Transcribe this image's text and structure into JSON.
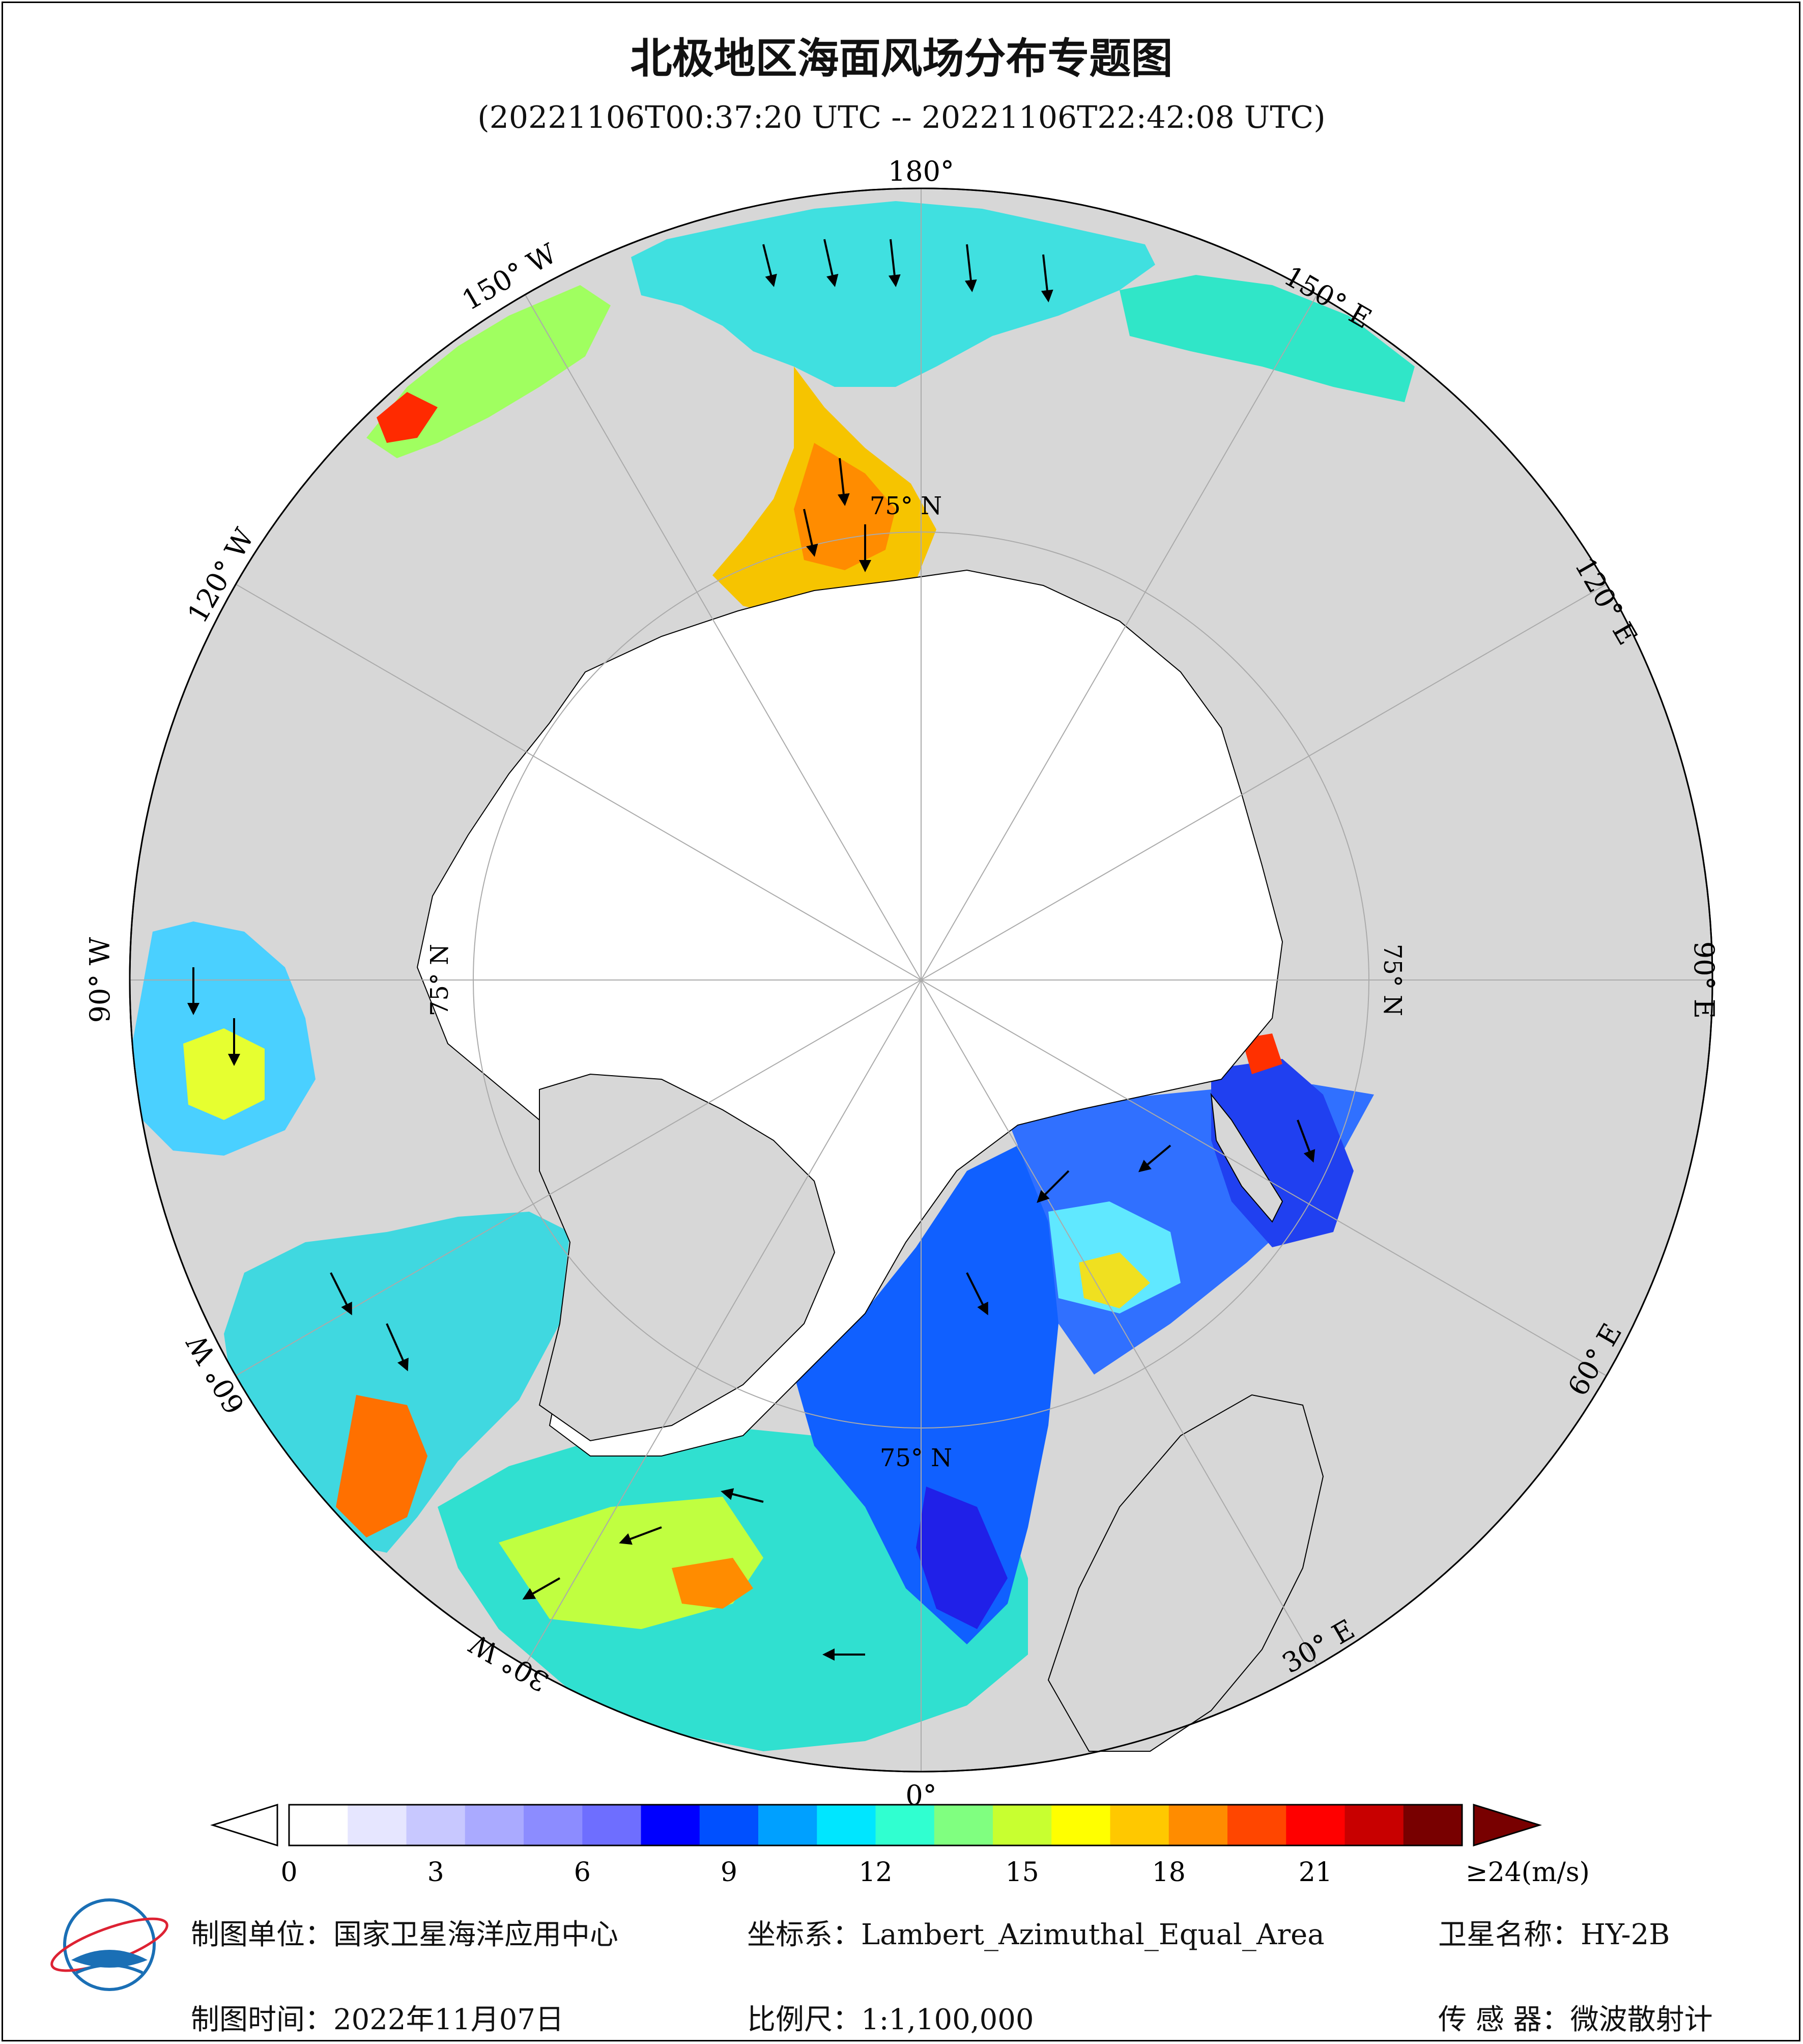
{
  "header": {
    "title": "北极地区海面风场分布专题图",
    "subtitle": "(20221106T00:37:20 UTC -- 20221106T22:42:08 UTC)"
  },
  "map": {
    "projection": "polar",
    "lon_labels": {
      "deg_180": "180°",
      "deg_150e": "150° E",
      "deg_120e": "120° E",
      "deg_90e": "90° E",
      "deg_60e": "60° E",
      "deg_30e": "30° E",
      "deg_0": "0°",
      "deg_30w": "30° W",
      "deg_60w": "60° W",
      "deg_90w": "90° W",
      "deg_120w": "120° W",
      "deg_150w": "150° W"
    },
    "lat_label": "75° N",
    "colors": {
      "ocean_land": "#d7d7d7",
      "ice": "#ffffff",
      "coast": "#000000"
    }
  },
  "colorbar": {
    "tick_labels": [
      "0",
      "3",
      "6",
      "9",
      "12",
      "15",
      "18",
      "21"
    ],
    "tick_values": [
      0,
      3,
      6,
      9,
      12,
      15,
      18,
      21
    ],
    "max_label": "≥24(m/s)",
    "min": 0,
    "max": 24,
    "colors": [
      "#ffffff",
      "#e6e6ff",
      "#c8c8ff",
      "#aaaaff",
      "#8c8cff",
      "#6e6eff",
      "#0000ff",
      "#0050ff",
      "#00a0ff",
      "#00e6ff",
      "#30ffd0",
      "#80ff80",
      "#c8ff30",
      "#ffff00",
      "#ffc800",
      "#ff8c00",
      "#ff4600",
      "#ff0000",
      "#c80000",
      "#780000"
    ]
  },
  "footer": {
    "unit": "制图单位：国家卫星海洋应用中心",
    "coord": "坐标系：Lambert_Azimuthal_Equal_Area",
    "satellite": "卫星名称：HY-2B",
    "date": "制图时间：2022年11月07日",
    "scale": "比例尺：1:1,100,000",
    "sensor": "传 感 器：微波散射计"
  }
}
